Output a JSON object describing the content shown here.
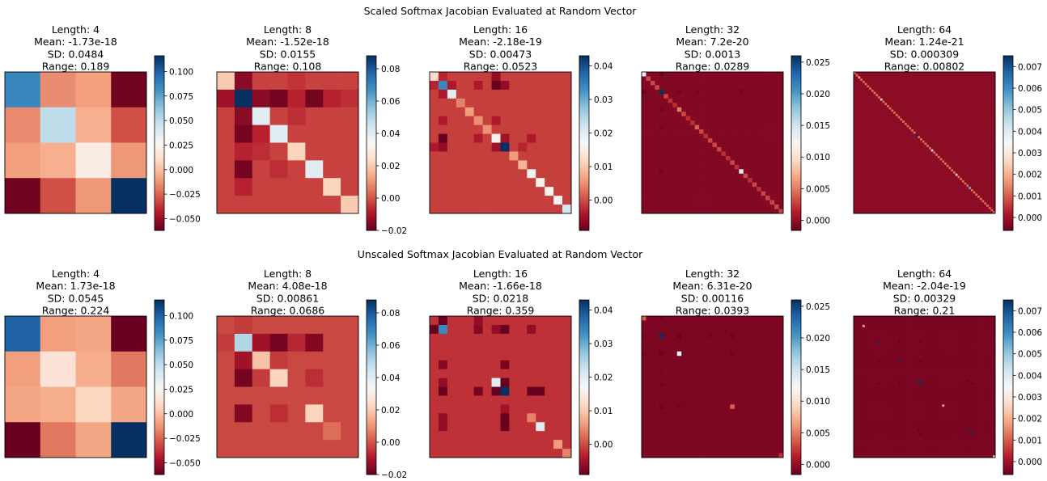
{
  "figure": {
    "row_titles": [
      "Scaled Softmax Jacobian Evaluated at Random Vector",
      "Unscaled Softmax Jacobian Evaluated at Random Vector"
    ]
  },
  "colormap": [
    "#67001f",
    "#b2182b",
    "#d6604d",
    "#f4a582",
    "#fddbc7",
    "#f7f7f7",
    "#d1e5f0",
    "#92c5de",
    "#4393c3",
    "#2166ac",
    "#053061"
  ],
  "chart_data": [
    {
      "type": "heatmap",
      "row": 0,
      "col": 0,
      "n": 4,
      "title_lines": [
        "Length: 4",
        "Mean: -1.73e-18",
        "SD: 0.0484",
        "Range: 0.189"
      ],
      "vmin": -0.062,
      "vmax": 0.116,
      "colorbar_ticks": [
        {
          "v": 0.1,
          "label": "0.100"
        },
        {
          "v": 0.075,
          "label": "0.075"
        },
        {
          "v": 0.05,
          "label": "0.050"
        },
        {
          "v": 0.025,
          "label": "0.025"
        },
        {
          "v": 0.0,
          "label": "0.000"
        },
        {
          "v": -0.025,
          "label": "−0.025"
        },
        {
          "v": -0.05,
          "label": "−0.050"
        }
      ],
      "matrix": [
        [
          0.085,
          -0.015,
          -0.01,
          -0.06
        ],
        [
          -0.015,
          0.05,
          -0.005,
          -0.03
        ],
        [
          -0.01,
          -0.005,
          0.02,
          -0.012
        ],
        [
          -0.06,
          -0.03,
          -0.012,
          0.116
        ]
      ]
    },
    {
      "type": "heatmap",
      "row": 0,
      "col": 1,
      "n": 8,
      "title_lines": [
        "Length: 8",
        "Mean: -1.52e-18",
        "SD: 0.0155",
        "Range: 0.108"
      ],
      "vmin": -0.02,
      "vmax": 0.088,
      "colorbar_ticks": [
        {
          "v": 0.08,
          "label": "0.08"
        },
        {
          "v": 0.06,
          "label": "0.06"
        },
        {
          "v": 0.04,
          "label": "0.04"
        },
        {
          "v": 0.02,
          "label": "0.02"
        },
        {
          "v": 0.0,
          "label": "0.00"
        },
        {
          "v": -0.02,
          "label": "−0.02"
        }
      ],
      "base": -0.003,
      "diag": [
        0.02,
        0.088,
        0.04,
        0.04,
        0.022,
        0.04,
        0.022,
        0.02
      ],
      "cells": [
        [
          0,
          1,
          -0.015
        ],
        [
          0,
          4,
          -0.005
        ],
        [
          1,
          2,
          -0.015
        ],
        [
          1,
          3,
          -0.018
        ],
        [
          1,
          5,
          -0.018
        ],
        [
          1,
          6,
          -0.008
        ],
        [
          2,
          1,
          -0.015
        ],
        [
          3,
          1,
          -0.018
        ],
        [
          3,
          2,
          -0.008
        ],
        [
          5,
          1,
          -0.018
        ],
        [
          1,
          4,
          -0.008
        ],
        [
          4,
          1,
          -0.008
        ],
        [
          6,
          1,
          -0.008
        ],
        [
          1,
          7,
          -0.006
        ],
        [
          2,
          4,
          -0.006
        ],
        [
          1,
          0,
          -0.012
        ],
        [
          4,
          2,
          -0.006
        ],
        [
          5,
          3,
          -0.006
        ]
      ]
    },
    {
      "type": "heatmap",
      "row": 0,
      "col": 2,
      "n": 16,
      "title_lines": [
        "Length: 16",
        "Mean: -2.18e-19",
        "SD: 0.00473",
        "Range: 0.0523"
      ],
      "vmin": -0.009,
      "vmax": 0.043,
      "colorbar_ticks": [
        {
          "v": 0.04,
          "label": "0.04"
        },
        {
          "v": 0.03,
          "label": "0.03"
        },
        {
          "v": 0.02,
          "label": "0.02"
        },
        {
          "v": 0.01,
          "label": "0.01"
        },
        {
          "v": 0.0,
          "label": "0.00"
        }
      ],
      "base": -0.001,
      "diag": [
        0.012,
        0.034,
        0.02,
        0.004,
        0.006,
        0.005,
        0.005,
        0.016,
        0.043,
        0.006,
        0.008,
        0.016,
        0.016,
        0.016,
        0.016,
        0.022
      ],
      "cells": [
        [
          1,
          7,
          -0.009
        ],
        [
          7,
          1,
          -0.009
        ],
        [
          0,
          7,
          -0.006
        ],
        [
          7,
          8,
          -0.005
        ],
        [
          8,
          7,
          -0.005
        ],
        [
          2,
          1,
          -0.004
        ],
        [
          1,
          2,
          -0.004
        ],
        [
          1,
          0,
          -0.003
        ],
        [
          0,
          1,
          -0.003
        ],
        [
          8,
          1,
          -0.006
        ],
        [
          1,
          8,
          -0.006
        ],
        [
          1,
          5,
          -0.004
        ],
        [
          5,
          1,
          -0.004
        ],
        [
          7,
          5,
          -0.004
        ],
        [
          5,
          7,
          -0.004
        ],
        [
          8,
          0,
          -0.004
        ],
        [
          7,
          11,
          -0.004
        ],
        [
          8,
          10,
          -0.003
        ]
      ]
    },
    {
      "type": "heatmap",
      "row": 0,
      "col": 3,
      "n": 32,
      "title_lines": [
        "Length: 32",
        "Mean: 7.2e-20",
        "SD: 0.0013",
        "Range: 0.0289"
      ],
      "vmin": -0.0016,
      "vmax": 0.026,
      "colorbar_ticks": [
        {
          "v": 0.025,
          "label": "0.025"
        },
        {
          "v": 0.02,
          "label": "0.020"
        },
        {
          "v": 0.015,
          "label": "0.015"
        },
        {
          "v": 0.01,
          "label": "0.010"
        },
        {
          "v": 0.005,
          "label": "0.005"
        },
        {
          "v": 0.0,
          "label": "0.000"
        }
      ],
      "base": -0.0006,
      "diag": [
        0.012,
        0.003,
        0.003,
        0.003,
        0.026,
        0.003,
        0.002,
        0.002,
        0.005,
        0.003,
        0.002,
        0.002,
        0.004,
        0.003,
        0.002,
        0.003,
        0.003,
        0.003,
        0.002,
        0.002,
        0.003,
        0.002,
        0.014,
        0.003,
        0.002,
        0.003,
        0.002,
        0.003,
        0.003,
        0.003,
        0.003,
        0.003
      ],
      "cells": [
        [
          4,
          0,
          -0.0016
        ],
        [
          0,
          4,
          -0.0016
        ],
        [
          4,
          4,
          0.026
        ],
        [
          22,
          4,
          -0.0012
        ],
        [
          4,
          22,
          -0.0012
        ],
        [
          8,
          4,
          -0.0012
        ],
        [
          4,
          8,
          -0.0012
        ],
        [
          12,
          4,
          -0.001
        ],
        [
          4,
          12,
          -0.001
        ]
      ]
    },
    {
      "type": "heatmap",
      "row": 0,
      "col": 4,
      "n": 64,
      "title_lines": [
        "Length: 64",
        "Mean: 1.24e-21",
        "SD: 0.000309",
        "Range: 0.00802"
      ],
      "vmin": -0.0006,
      "vmax": 0.0075,
      "colorbar_ticks": [
        {
          "v": 0.007,
          "label": "0.007"
        },
        {
          "v": 0.006,
          "label": "0.006"
        },
        {
          "v": 0.005,
          "label": "0.005"
        },
        {
          "v": 0.004,
          "label": "0.004"
        },
        {
          "v": 0.003,
          "label": "0.003"
        },
        {
          "v": 0.002,
          "label": "0.002"
        },
        {
          "v": 0.001,
          "label": "0.001"
        },
        {
          "v": 0.0,
          "label": "0.000"
        }
      ],
      "base": -0.0002,
      "diag_default": 0.0012,
      "diag": [],
      "cells": [
        [
          28,
          28,
          0.0075
        ],
        [
          52,
          52,
          0.0055
        ],
        [
          35,
          35,
          0.003
        ],
        [
          12,
          12,
          0.0025
        ],
        [
          46,
          46,
          0.0025
        ],
        [
          2,
          2,
          0.002
        ]
      ]
    },
    {
      "type": "heatmap",
      "row": 1,
      "col": 0,
      "n": 4,
      "title_lines": [
        "Length: 4",
        "Mean: 1.73e-18",
        "SD: 0.0545",
        "Range: 0.224"
      ],
      "vmin": -0.062,
      "vmax": 0.116,
      "colorbar_ticks": [
        {
          "v": 0.1,
          "label": "0.100"
        },
        {
          "v": 0.075,
          "label": "0.075"
        },
        {
          "v": 0.05,
          "label": "0.050"
        },
        {
          "v": 0.025,
          "label": "0.025"
        },
        {
          "v": 0.0,
          "label": "0.000"
        },
        {
          "v": -0.025,
          "label": "−0.025"
        },
        {
          "v": -0.05,
          "label": "−0.050"
        }
      ],
      "matrix": [
        [
          0.1,
          -0.01,
          -0.008,
          -0.062
        ],
        [
          -0.01,
          0.015,
          -0.006,
          -0.02
        ],
        [
          -0.008,
          -0.006,
          0.008,
          -0.008
        ],
        [
          -0.062,
          -0.02,
          -0.008,
          0.116
        ]
      ]
    },
    {
      "type": "heatmap",
      "row": 1,
      "col": 1,
      "n": 8,
      "title_lines": [
        "Length: 8",
        "Mean: 4.08e-18",
        "SD: 0.00861",
        "Range: 0.0686"
      ],
      "vmin": -0.02,
      "vmax": 0.088,
      "colorbar_ticks": [
        {
          "v": 0.08,
          "label": "0.08"
        },
        {
          "v": 0.06,
          "label": "0.06"
        },
        {
          "v": 0.04,
          "label": "0.04"
        },
        {
          "v": 0.02,
          "label": "0.02"
        },
        {
          "v": 0.0,
          "label": "0.00"
        },
        {
          "v": -0.02,
          "label": "−0.02"
        }
      ],
      "base": -0.002,
      "diag": [
        -0.002,
        0.05,
        0.018,
        0.022,
        -0.002,
        0.022,
        0.004,
        -0.002
      ],
      "cells": [
        [
          1,
          2,
          -0.012
        ],
        [
          2,
          1,
          -0.012
        ],
        [
          1,
          3,
          -0.018
        ],
        [
          3,
          1,
          -0.018
        ],
        [
          1,
          5,
          -0.016
        ],
        [
          5,
          1,
          -0.016
        ],
        [
          1,
          0,
          -0.004
        ],
        [
          0,
          1,
          -0.004
        ],
        [
          3,
          5,
          -0.006
        ],
        [
          5,
          3,
          -0.006
        ],
        [
          1,
          4,
          -0.007
        ],
        [
          2,
          3,
          -0.004
        ],
        [
          3,
          2,
          -0.004
        ]
      ]
    },
    {
      "type": "heatmap",
      "row": 1,
      "col": 2,
      "n": 16,
      "title_lines": [
        "Length: 16",
        "Mean: -1.66e-18",
        "SD: 0.0218",
        "Range: 0.359"
      ],
      "vmin": -0.009,
      "vmax": 0.043,
      "colorbar_ticks": [
        {
          "v": 0.04,
          "label": "0.04"
        },
        {
          "v": 0.03,
          "label": "0.03"
        },
        {
          "v": 0.02,
          "label": "0.02"
        },
        {
          "v": 0.01,
          "label": "0.01"
        },
        {
          "v": 0.0,
          "label": "0.00"
        }
      ],
      "base": -0.002,
      "diag": [
        -0.002,
        0.034,
        -0.002,
        -0.002,
        -0.002,
        -0.002,
        -0.002,
        0.02,
        0.043,
        -0.002,
        -0.002,
        -0.002,
        0.02,
        -0.002,
        0.006,
        0.004
      ],
      "cells": [
        [
          0,
          0,
          -0.002
        ],
        [
          1,
          0,
          -0.009
        ],
        [
          0,
          1,
          -0.009
        ],
        [
          1,
          7,
          -0.006
        ],
        [
          7,
          1,
          -0.006
        ],
        [
          1,
          8,
          -0.009
        ],
        [
          8,
          1,
          -0.009
        ],
        [
          1,
          5,
          -0.007
        ],
        [
          5,
          1,
          -0.007
        ],
        [
          7,
          8,
          -0.009
        ],
        [
          8,
          7,
          -0.009
        ],
        [
          8,
          11,
          -0.009
        ],
        [
          11,
          8,
          -0.009
        ],
        [
          8,
          5,
          -0.008
        ],
        [
          5,
          8,
          -0.008
        ],
        [
          12,
          8,
          -0.009
        ],
        [
          8,
          12,
          -0.009
        ],
        [
          1,
          11,
          -0.006
        ],
        [
          11,
          1,
          -0.006
        ],
        [
          0,
          5,
          -0.006
        ],
        [
          10,
          8,
          -0.005
        ],
        [
          11,
          11,
          0.004
        ],
        [
          12,
          1,
          -0.006
        ]
      ]
    },
    {
      "type": "heatmap",
      "row": 1,
      "col": 3,
      "n": 32,
      "title_lines": [
        "Length: 32",
        "Mean: 6.31e-20",
        "SD: 0.00116",
        "Range: 0.0393"
      ],
      "vmin": -0.0016,
      "vmax": 0.026,
      "colorbar_ticks": [
        {
          "v": 0.025,
          "label": "0.025"
        },
        {
          "v": 0.02,
          "label": "0.020"
        },
        {
          "v": 0.015,
          "label": "0.015"
        },
        {
          "v": 0.01,
          "label": "0.010"
        },
        {
          "v": 0.005,
          "label": "0.005"
        },
        {
          "v": 0.0,
          "label": "0.000"
        }
      ],
      "base": -0.0008,
      "diag_default": -0.0008,
      "diag": [],
      "cells": [
        [
          0,
          0,
          0.004
        ],
        [
          4,
          4,
          0.026
        ],
        [
          8,
          8,
          0.012
        ],
        [
          20,
          20,
          0.004
        ],
        [
          31,
          31,
          0.002
        ],
        [
          4,
          8,
          -0.0016
        ],
        [
          8,
          4,
          -0.0016
        ],
        [
          4,
          20,
          -0.0014
        ],
        [
          20,
          4,
          -0.0014
        ],
        [
          4,
          0,
          -0.0012
        ],
        [
          0,
          4,
          -0.0012
        ],
        [
          8,
          20,
          -0.0012
        ],
        [
          20,
          8,
          -0.0012
        ],
        [
          4,
          15,
          -0.0012
        ],
        [
          15,
          4,
          -0.0012
        ],
        [
          8,
          0,
          -0.0012
        ],
        [
          12,
          4,
          -0.001
        ]
      ]
    },
    {
      "type": "heatmap",
      "row": 1,
      "col": 4,
      "n": 64,
      "title_lines": [
        "Length: 64",
        "Mean: -2.04e-19",
        "SD: 0.00329",
        "Range: 0.21"
      ],
      "vmin": -0.0006,
      "vmax": 0.0075,
      "colorbar_ticks": [
        {
          "v": 0.007,
          "label": "0.007"
        },
        {
          "v": 0.006,
          "label": "0.006"
        },
        {
          "v": 0.005,
          "label": "0.005"
        },
        {
          "v": 0.004,
          "label": "0.004"
        },
        {
          "v": 0.003,
          "label": "0.003"
        },
        {
          "v": 0.002,
          "label": "0.002"
        },
        {
          "v": 0.001,
          "label": "0.001"
        },
        {
          "v": 0.0,
          "label": "0.000"
        }
      ],
      "base": -0.0004,
      "diag_default": -0.0004,
      "diag": [],
      "cells": [
        [
          11,
          11,
          0.0075
        ],
        [
          20,
          20,
          0.0075
        ],
        [
          29,
          29,
          0.0075
        ],
        [
          30,
          30,
          0.0075
        ],
        [
          51,
          51,
          0.0075
        ],
        [
          53,
          53,
          0.0075
        ],
        [
          63,
          63,
          0.003
        ],
        [
          4,
          4,
          0.002
        ],
        [
          40,
          40,
          0.002
        ],
        [
          11,
          30,
          -0.0006
        ],
        [
          30,
          11,
          -0.0006
        ],
        [
          20,
          30,
          -0.0006
        ],
        [
          30,
          20,
          -0.0006
        ],
        [
          29,
          51,
          -0.0006
        ],
        [
          51,
          29,
          -0.0006
        ],
        [
          11,
          20,
          -0.0006
        ],
        [
          20,
          11,
          -0.0006
        ],
        [
          53,
          30,
          -0.0006
        ],
        [
          30,
          53,
          -0.0006
        ],
        [
          4,
          30,
          -0.0005
        ],
        [
          30,
          4,
          -0.0005
        ]
      ]
    }
  ]
}
